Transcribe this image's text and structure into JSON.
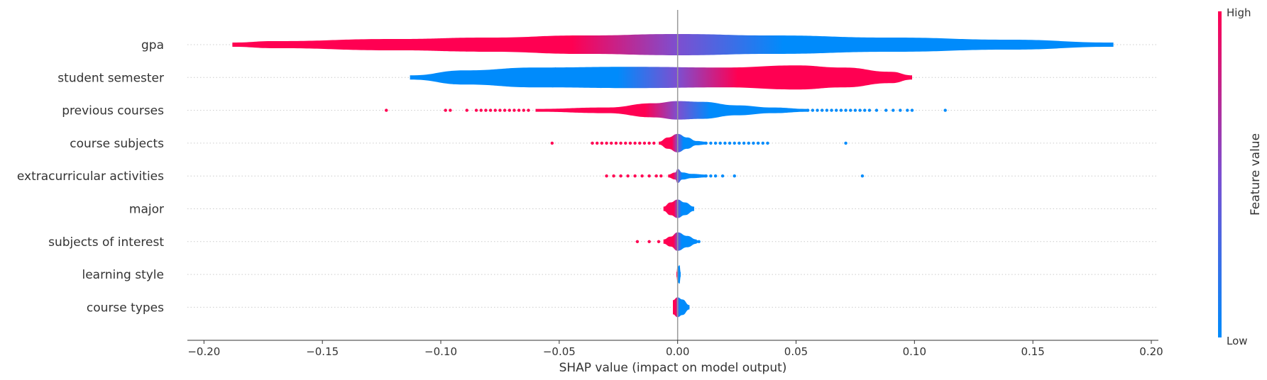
{
  "chart_data": {
    "type": "violin",
    "xlabel": "SHAP value (impact on model output)",
    "xlim": [
      -0.207,
      0.203
    ],
    "xticks": [
      -0.2,
      -0.15,
      -0.1,
      -0.05,
      0.0,
      0.05,
      0.1,
      0.15,
      0.2
    ],
    "xtick_labels": [
      "−0.20",
      "−0.15",
      "−0.10",
      "−0.05",
      "0.00",
      "0.05",
      "0.10",
      "0.15",
      "0.20"
    ],
    "colorbar": {
      "label": "Feature value",
      "high": "High",
      "low": "Low",
      "high_color": "#ff0052",
      "low_color": "#008bfb",
      "mid_color": "#7d4fd0"
    },
    "features": [
      {
        "name": "gpa",
        "min": -0.188,
        "max": 0.184,
        "high_side": "negative",
        "profile": [
          [
            -0.188,
            3
          ],
          [
            -0.17,
            5
          ],
          [
            -0.12,
            8
          ],
          [
            -0.08,
            10
          ],
          [
            -0.04,
            13
          ],
          [
            0.0,
            15
          ],
          [
            0.04,
            13
          ],
          [
            0.09,
            10
          ],
          [
            0.14,
            7
          ],
          [
            0.184,
            3
          ]
        ],
        "outliers": []
      },
      {
        "name": "student semester",
        "min": -0.113,
        "max": 0.099,
        "high_side": "positive",
        "profile": [
          [
            -0.113,
            3
          ],
          [
            -0.09,
            10
          ],
          [
            -0.06,
            14
          ],
          [
            -0.02,
            15
          ],
          [
            0.02,
            14
          ],
          [
            0.05,
            17
          ],
          [
            0.07,
            14
          ],
          [
            0.09,
            8
          ],
          [
            0.099,
            3
          ]
        ],
        "outliers": []
      },
      {
        "name": "previous courses",
        "min": -0.06,
        "max": 0.055,
        "high_side": "negative",
        "profile": [
          [
            -0.06,
            2
          ],
          [
            -0.03,
            4
          ],
          [
            -0.01,
            10
          ],
          [
            0.0,
            13
          ],
          [
            0.01,
            12
          ],
          [
            0.025,
            7
          ],
          [
            0.04,
            4
          ],
          [
            0.055,
            2
          ]
        ],
        "outliers": [
          -0.123,
          -0.098,
          -0.096,
          -0.089,
          -0.085,
          -0.083,
          -0.081,
          -0.079,
          -0.077,
          -0.075,
          -0.073,
          -0.071,
          -0.069,
          -0.067,
          -0.065,
          -0.063,
          0.055,
          0.057,
          0.059,
          0.061,
          0.063,
          0.065,
          0.067,
          0.069,
          0.071,
          0.073,
          0.075,
          0.077,
          0.079,
          0.081,
          0.084,
          0.088,
          0.091,
          0.094,
          0.097,
          0.099,
          0.113
        ]
      },
      {
        "name": "course subjects",
        "min": -0.008,
        "max": 0.012,
        "high_side": "negative",
        "profile": [
          [
            -0.008,
            2
          ],
          [
            -0.004,
            8
          ],
          [
            0.0,
            13
          ],
          [
            0.004,
            8
          ],
          [
            0.008,
            3
          ],
          [
            0.012,
            2
          ]
        ],
        "outliers": [
          -0.053,
          -0.036,
          -0.034,
          -0.032,
          -0.03,
          -0.028,
          -0.026,
          -0.024,
          -0.022,
          -0.02,
          -0.018,
          -0.016,
          -0.014,
          -0.012,
          -0.01,
          0.012,
          0.014,
          0.016,
          0.018,
          0.02,
          0.022,
          0.024,
          0.026,
          0.028,
          0.03,
          0.032,
          0.034,
          0.036,
          0.038,
          0.071
        ]
      },
      {
        "name": "extracurricular activities",
        "min": -0.004,
        "max": 0.012,
        "high_side": "negative",
        "profile": [
          [
            -0.004,
            2
          ],
          [
            -0.001,
            5
          ],
          [
            0.0,
            10
          ],
          [
            0.002,
            5
          ],
          [
            0.006,
            3
          ],
          [
            0.012,
            2
          ]
        ],
        "outliers": [
          -0.03,
          -0.027,
          -0.024,
          -0.021,
          -0.018,
          -0.015,
          -0.012,
          -0.009,
          -0.007,
          0.012,
          0.014,
          0.016,
          0.019,
          0.024,
          0.078
        ]
      },
      {
        "name": "major",
        "min": -0.006,
        "max": 0.007,
        "high_side": "negative",
        "profile": [
          [
            -0.006,
            3
          ],
          [
            -0.003,
            9
          ],
          [
            0.0,
            13
          ],
          [
            0.003,
            9
          ],
          [
            0.007,
            3
          ]
        ],
        "outliers": []
      },
      {
        "name": "subjects of interest",
        "min": -0.006,
        "max": 0.008,
        "high_side": "negative",
        "profile": [
          [
            -0.006,
            3
          ],
          [
            -0.003,
            7
          ],
          [
            0.0,
            13
          ],
          [
            0.004,
            8
          ],
          [
            0.008,
            3
          ]
        ],
        "outliers": [
          -0.017,
          -0.012,
          -0.008,
          0.008,
          0.009
        ]
      },
      {
        "name": "learning style",
        "min": -0.0005,
        "max": 0.0013,
        "high_side": "negative",
        "profile": [
          [
            -0.0005,
            3
          ],
          [
            0.0,
            11
          ],
          [
            0.0008,
            13
          ],
          [
            0.0013,
            3
          ]
        ],
        "outliers": []
      },
      {
        "name": "course types",
        "min": -0.002,
        "max": 0.005,
        "high_side": "negative",
        "profile": [
          [
            -0.002,
            10
          ],
          [
            0.0,
            14
          ],
          [
            0.002,
            11
          ],
          [
            0.005,
            3
          ]
        ],
        "outliers": []
      }
    ]
  }
}
